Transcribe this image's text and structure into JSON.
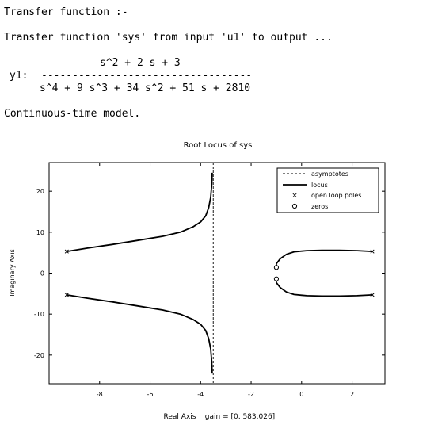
{
  "console": {
    "line1": "Transfer function :-",
    "line2": "Transfer function 'sys' from input 'u1' to output ...",
    "numerator": "s^2 + 2 s + 3",
    "output_label": "y1:",
    "fraction_bar": "----------------------------------",
    "denominator": "s^4 + 9 s^3 + 34 s^2 + 51 s + 2810",
    "model_line": "Continuous-time model."
  },
  "chart_data": {
    "type": "line",
    "title": "Root Locus of sys",
    "xlabel": "Real Axis",
    "gain_label": "gain = [0, 583.026]",
    "ylabel": "Imaginary Axis",
    "xlim": [
      -10,
      3.3
    ],
    "ylim": [
      -27,
      27
    ],
    "x_ticks": [
      -8,
      -6,
      -4,
      -2,
      0,
      2
    ],
    "y_ticks": [
      -20,
      -10,
      0,
      10,
      20
    ],
    "x_tick_labels": [
      "-8",
      "-6",
      "-4",
      "-2",
      "0",
      "2"
    ],
    "y_tick_labels": [
      "-20",
      "-10",
      "0",
      "10",
      "20"
    ],
    "legend": {
      "placement": "top-right",
      "entries": [
        "asymptotes",
        "locus",
        "open loop poles",
        "zeros"
      ]
    },
    "asymptote_x": -3.5,
    "open_loop_poles": [
      [
        -9.3,
        5.3
      ],
      [
        -9.3,
        -5.3
      ],
      [
        2.8,
        5.3
      ],
      [
        2.8,
        -5.3
      ]
    ],
    "zeros": [
      [
        -1.0,
        1.4
      ],
      [
        -1.0,
        -1.4
      ]
    ],
    "series": [
      {
        "values": [
          [
            -9.3,
            5.3
          ],
          [
            -8.5,
            6.1
          ],
          [
            -7.5,
            7.0
          ],
          [
            -6.5,
            8.0
          ],
          [
            -5.5,
            9.0
          ],
          [
            -4.8,
            10.0
          ],
          [
            -4.3,
            11.3
          ],
          [
            -4.0,
            12.5
          ],
          [
            -3.8,
            14.0
          ],
          [
            -3.68,
            16.0
          ],
          [
            -3.6,
            18.5
          ],
          [
            -3.56,
            21.5
          ],
          [
            -3.54,
            24.5
          ]
        ]
      },
      {
        "values": [
          [
            -9.3,
            -5.3
          ],
          [
            -8.5,
            -6.1
          ],
          [
            -7.5,
            -7.0
          ],
          [
            -6.5,
            -8.0
          ],
          [
            -5.5,
            -9.0
          ],
          [
            -4.8,
            -10.0
          ],
          [
            -4.3,
            -11.3
          ],
          [
            -4.0,
            -12.5
          ],
          [
            -3.8,
            -14.0
          ],
          [
            -3.68,
            -16.0
          ],
          [
            -3.6,
            -18.5
          ],
          [
            -3.56,
            -21.5
          ],
          [
            -3.54,
            -24.5
          ]
        ]
      },
      {
        "values": [
          [
            2.8,
            5.3
          ],
          [
            2.2,
            5.5
          ],
          [
            1.5,
            5.6
          ],
          [
            0.8,
            5.6
          ],
          [
            0.2,
            5.5
          ],
          [
            -0.3,
            5.2
          ],
          [
            -0.6,
            4.6
          ],
          [
            -0.85,
            3.5
          ],
          [
            -1.0,
            2.3
          ],
          [
            -1.0,
            1.4
          ]
        ]
      },
      {
        "values": [
          [
            2.8,
            -5.3
          ],
          [
            2.2,
            -5.5
          ],
          [
            1.5,
            -5.6
          ],
          [
            0.8,
            -5.6
          ],
          [
            0.2,
            -5.5
          ],
          [
            -0.3,
            -5.2
          ],
          [
            -0.6,
            -4.6
          ],
          [
            -0.85,
            -3.5
          ],
          [
            -1.0,
            -2.3
          ],
          [
            -1.0,
            -1.4
          ]
        ]
      }
    ]
  }
}
